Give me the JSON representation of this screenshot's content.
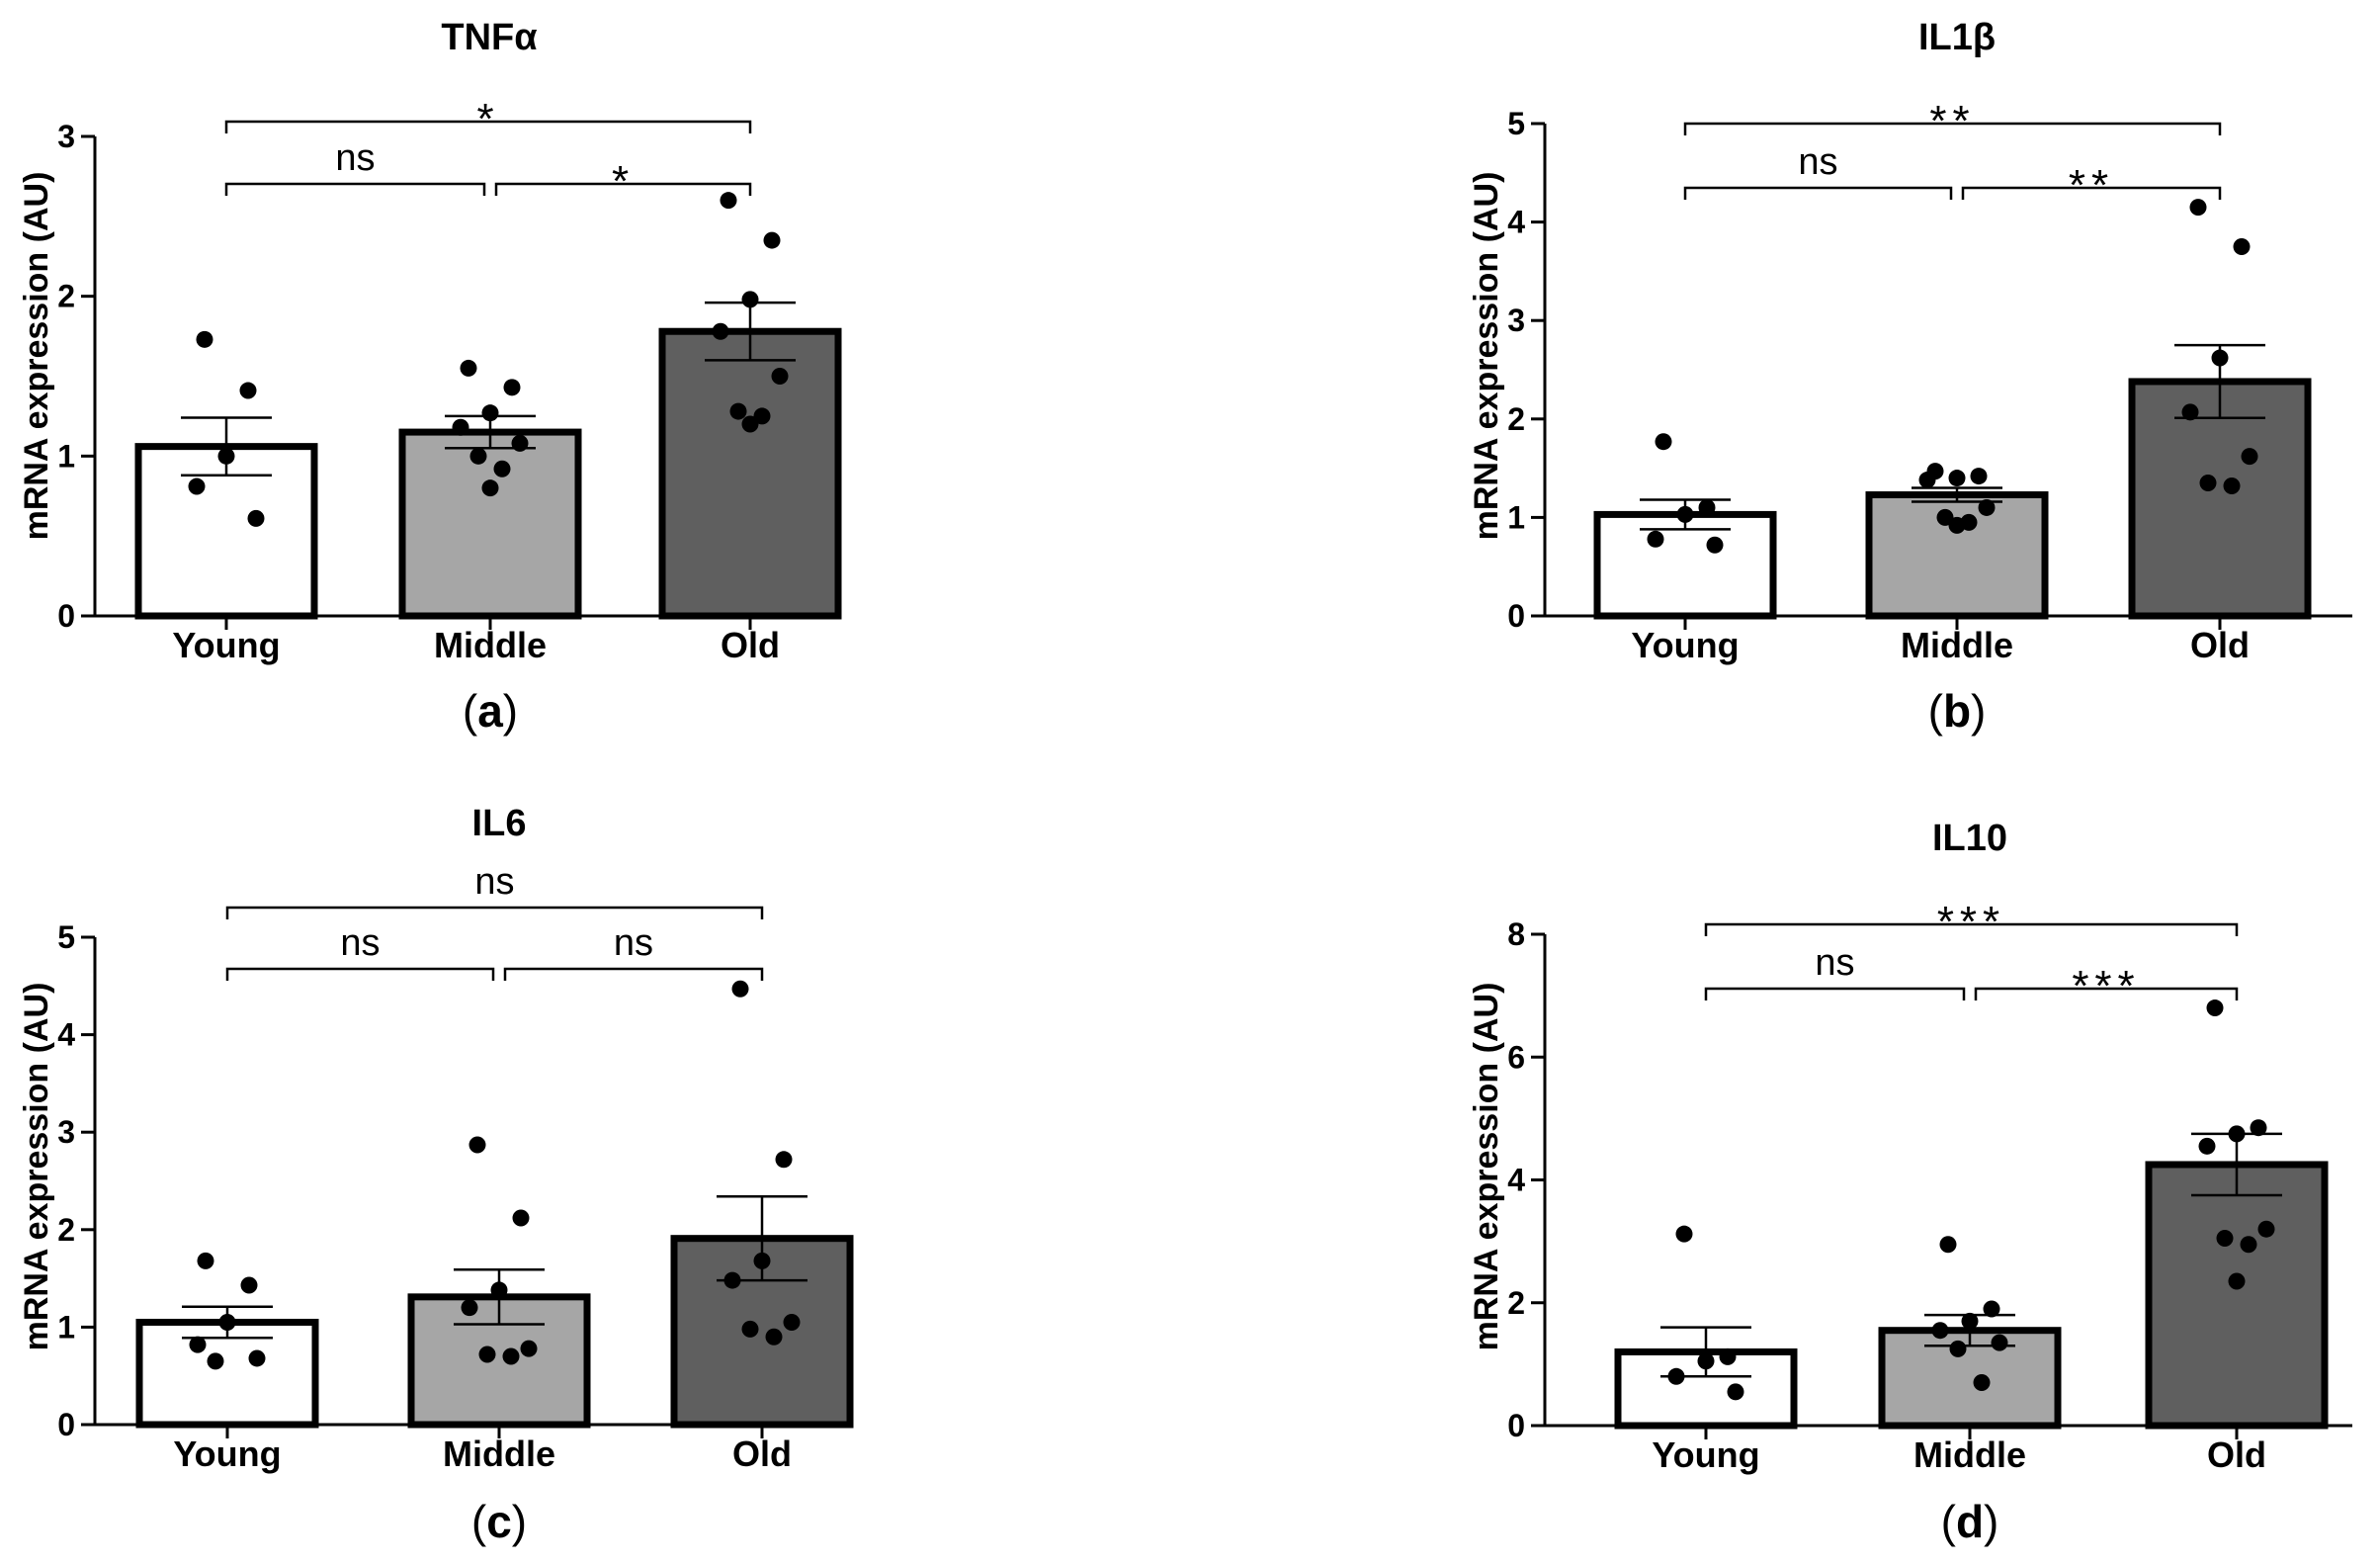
{
  "chart_data": [
    {
      "type": "bar",
      "panel": "a",
      "title": "TNFα",
      "ylabel": "mRNA expression (AU)",
      "xlabel": "",
      "categories": [
        "Young",
        "Middle",
        "Old"
      ],
      "ylim": [
        0,
        3
      ],
      "yticks": [
        "0",
        "1",
        "2",
        "3"
      ],
      "bar_colors": [
        "#ffffff",
        "#a6a6a6",
        "#5f5f5f"
      ],
      "values": [
        1.06,
        1.15,
        1.78
      ],
      "sem": [
        0.18,
        0.1,
        0.18
      ],
      "points": [
        [
          1.73,
          1.41,
          1.0,
          0.81,
          0.61
        ],
        [
          1.55,
          1.43,
          1.27,
          1.18,
          1.08,
          1.0,
          0.92,
          0.8
        ],
        [
          2.6,
          2.35,
          1.98,
          1.78,
          1.5,
          1.28,
          1.25,
          1.2
        ]
      ],
      "comparisons": [
        {
          "from": "Young",
          "to": "Middle",
          "label": "ns"
        },
        {
          "from": "Middle",
          "to": "Old",
          "label": "*"
        },
        {
          "from": "Young",
          "to": "Old",
          "label": "*"
        }
      ],
      "panel_label": {
        "open": "(",
        "letter": "a",
        "close": ")"
      }
    },
    {
      "type": "bar",
      "panel": "b",
      "title": "IL1β",
      "ylabel": "mRNA expression (AU)",
      "xlabel": "",
      "categories": [
        "Young",
        "Middle",
        "Old"
      ],
      "ylim": [
        0,
        5
      ],
      "yticks": [
        "0",
        "1",
        "2",
        "3",
        "4",
        "5"
      ],
      "bar_colors": [
        "#ffffff",
        "#a6a6a6",
        "#5f5f5f"
      ],
      "values": [
        1.03,
        1.23,
        2.38
      ],
      "sem": [
        0.15,
        0.07,
        0.37
      ],
      "points": [
        [
          1.77,
          1.1,
          1.03,
          0.78,
          0.72
        ],
        [
          1.47,
          1.42,
          1.4,
          1.38,
          1.1,
          1.0,
          0.95,
          0.92
        ],
        [
          4.15,
          3.75,
          2.62,
          2.07,
          1.62,
          1.35,
          1.32
        ]
      ],
      "comparisons": [
        {
          "from": "Young",
          "to": "Middle",
          "label": "ns"
        },
        {
          "from": "Middle",
          "to": "Old",
          "label": "**"
        },
        {
          "from": "Young",
          "to": "Old",
          "label": "**"
        }
      ],
      "panel_label": {
        "open": "(",
        "letter": "b",
        "close": ")"
      }
    },
    {
      "type": "bar",
      "panel": "c",
      "title": "IL6",
      "ylabel": "mRNA expression (AU)",
      "xlabel": "",
      "categories": [
        "Young",
        "Middle",
        "Old"
      ],
      "ylim": [
        0,
        5
      ],
      "yticks": [
        "0",
        "1",
        "2",
        "3",
        "4",
        "5"
      ],
      "bar_colors": [
        "#ffffff",
        "#a6a6a6",
        "#5f5f5f"
      ],
      "values": [
        1.05,
        1.31,
        1.91
      ],
      "sem": [
        0.16,
        0.28,
        0.43
      ],
      "points": [
        [
          1.68,
          1.43,
          1.05,
          0.82,
          0.68,
          0.65
        ],
        [
          2.87,
          2.12,
          1.38,
          1.2,
          0.78,
          0.72,
          0.7
        ],
        [
          4.47,
          2.72,
          1.68,
          1.48,
          1.05,
          0.98,
          0.9
        ]
      ],
      "comparisons": [
        {
          "from": "Young",
          "to": "Middle",
          "label": "ns"
        },
        {
          "from": "Middle",
          "to": "Old",
          "label": "ns"
        },
        {
          "from": "Young",
          "to": "Old",
          "label": "ns"
        }
      ],
      "panel_label": {
        "open": "(",
        "letter": "c",
        "close": ")"
      }
    },
    {
      "type": "bar",
      "panel": "d",
      "title": "IL10",
      "ylabel": "mRNA expression (AU)",
      "xlabel": "",
      "categories": [
        "Young",
        "Middle",
        "Old"
      ],
      "ylim": [
        0,
        8
      ],
      "yticks": [
        "0",
        "2",
        "4",
        "6",
        "8"
      ],
      "bar_colors": [
        "#ffffff",
        "#a6a6a6",
        "#5f5f5f"
      ],
      "values": [
        1.2,
        1.55,
        4.25
      ],
      "sem": [
        0.4,
        0.25,
        0.5
      ],
      "points": [
        [
          3.12,
          1.12,
          1.05,
          0.8,
          0.55
        ],
        [
          2.95,
          1.9,
          1.7,
          1.55,
          1.35,
          1.25,
          0.7
        ],
        [
          6.8,
          4.85,
          4.75,
          4.55,
          3.2,
          3.05,
          2.95,
          2.35
        ]
      ],
      "comparisons": [
        {
          "from": "Young",
          "to": "Middle",
          "label": "ns"
        },
        {
          "from": "Middle",
          "to": "Old",
          "label": "***"
        },
        {
          "from": "Young",
          "to": "Old",
          "label": "***"
        }
      ],
      "panel_label": {
        "open": "(",
        "letter": "d",
        "close": ")"
      }
    }
  ]
}
